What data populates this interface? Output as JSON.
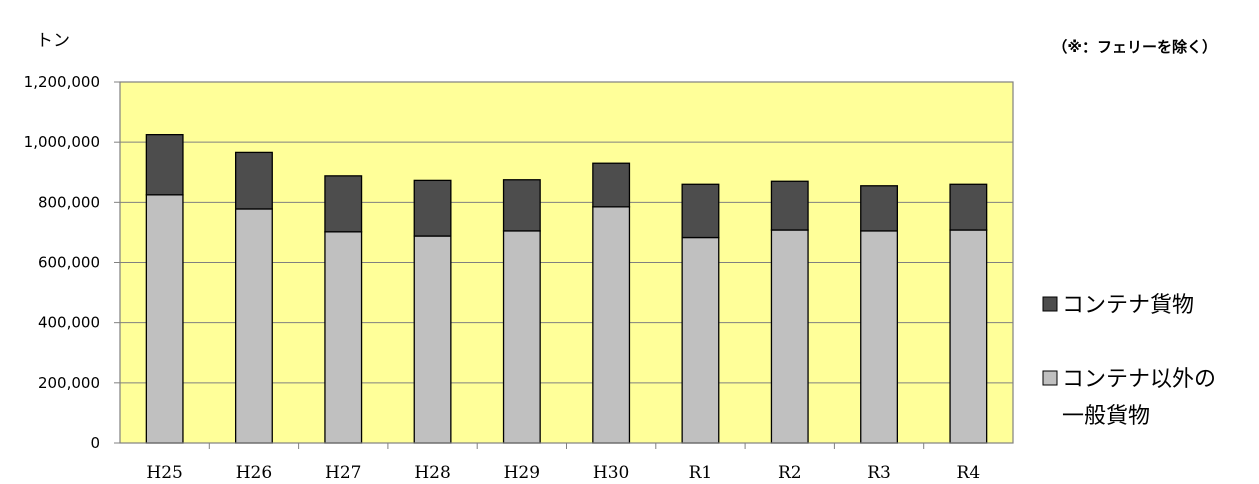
{
  "chart_data": {
    "type": "bar",
    "stacked": true,
    "ylabel": "トン",
    "note": "（※：フェリーを除く）",
    "categories": [
      "H25",
      "H26",
      "H27",
      "H28",
      "H29",
      "H30",
      "R1",
      "R2",
      "R3",
      "R4"
    ],
    "ylim": [
      0,
      1200000
    ],
    "yticks": [
      "0",
      "200,000",
      "400,000",
      "600,000",
      "800,000",
      "1,000,000",
      "1,200,000"
    ],
    "grid": true,
    "legend_position": "right",
    "plot_background": "#FFFF99",
    "series": [
      {
        "name": "コンテナ以外の一般貨物",
        "legend_lines": [
          "コンテナ以外の",
          "一般貨物"
        ],
        "color": "#C0C0C0",
        "values": [
          825000,
          778000,
          702000,
          688000,
          705000,
          785000,
          683000,
          708000,
          705000,
          708000
        ]
      },
      {
        "name": "コンテナ貨物",
        "legend_lines": [
          "コンテナ貨物"
        ],
        "color": "#4D4D4D",
        "values": [
          200000,
          188000,
          186000,
          185000,
          170000,
          145000,
          177000,
          162000,
          150000,
          152000
        ]
      }
    ]
  }
}
